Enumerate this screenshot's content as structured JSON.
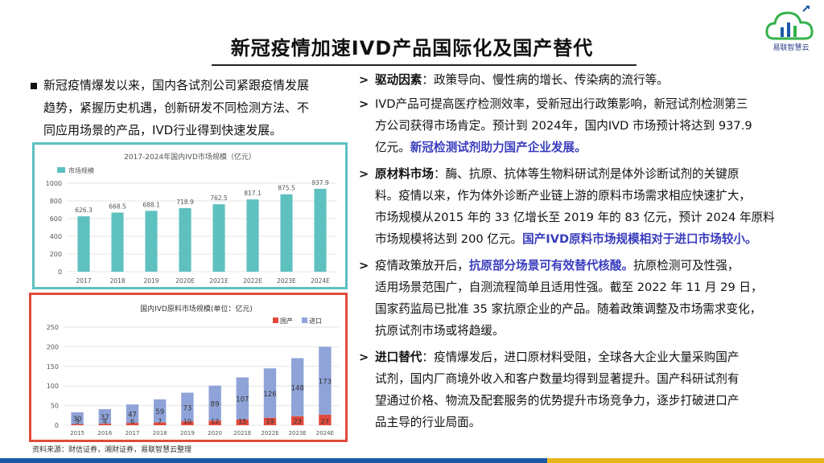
{
  "title": "新冠疫情加速IVD产品国际化及国产替代",
  "logo": {
    "name": "易联智慧云",
    "icon": "cloud-chart-icon"
  },
  "left_paragraph": [
    "新冠疫情爆发以来，国内各试剂公司紧跟疫情发展",
    "趋势，紧握历史机遇，创新研发不同检测方法、不",
    "同应用场景的产品，IVD行业得到快速发展。"
  ],
  "bullets": [
    {
      "head": "驱动因素",
      "lines": [
        {
          "text": "：政策导向、慢性病的增长、传染病的流行等。"
        }
      ]
    },
    {
      "head": "",
      "lines": [
        {
          "text": "IVD产品可提高医疗检测效率，受新冠出行政策影响，新冠试剂检测第三"
        },
        {
          "text": "方公司获得市场肯定。预计到 2024年，国内IVD 市场预计将达到 937.9"
        },
        {
          "text": "亿元。",
          "emph": "新冠检测试剂助力国产企业发展。"
        }
      ]
    },
    {
      "head": "原材料市场",
      "lines": [
        {
          "text": "：酶、抗原、抗体等生物料研试剂是体外诊断试剂的关键原"
        },
        {
          "text": "料。疫情以来，作为体外诊断产业链上游的原料市场需求相应快速扩大，"
        },
        {
          "text": "市场规模从2015 年的 33 亿增长至 2019 年的 83 亿元，预计 2024 年原料"
        },
        {
          "text": "市场规模将达到 200 亿元。",
          "emph": "国产IVD原料市场规模相对于进口市场较小。"
        }
      ]
    },
    {
      "head": "",
      "lines": [
        {
          "text": "疫情政策放开后，",
          "emph": "抗原部分场景可有效替代核酸。",
          "tail": "抗原检测可及性强，"
        },
        {
          "text": "适用场景范围广，自测流程简单且适用性强。截至 2022 年 11 月 29 日，"
        },
        {
          "text": "国家药监局已批准 35 家抗原企业的产品。随着政策调整及市场需求变化，"
        },
        {
          "text": "抗原试剂市场或将趋缓。"
        }
      ]
    },
    {
      "head": "进口替代",
      "lines": [
        {
          "text": "：疫情爆发后，进口原材料受阻，全球各大企业大量采购国产"
        },
        {
          "text": "试剂，国内厂商境外收入和客户数量均得到显著提升。国产科研试剂有"
        },
        {
          "text": "望通过价格、物流及配套服务的优势提升市场竞争力，逐步打破进口产"
        },
        {
          "text": "品主导的行业局面。"
        }
      ]
    }
  ],
  "source": "资料来源：财信证券，湘财证券，易联智慧云整理",
  "colors": {
    "teal": "#5fc0c0",
    "red_frame": "#e24b3b",
    "domestic": "#e04a3c",
    "import": "#8fa3d8",
    "emph_blue": "#3a3dbd"
  },
  "chart_data": [
    {
      "type": "bar",
      "title": "2017-2024年国内IVD市场规模（亿元）",
      "legend": [
        "市场规模"
      ],
      "legend_position": "top-left",
      "categories": [
        "2017",
        "2018",
        "2019",
        "2020E",
        "2021E",
        "2022E",
        "2023E",
        "2024E"
      ],
      "series": [
        {
          "name": "市场规模",
          "values": [
            626.3,
            668.5,
            688.1,
            718.9,
            762.5,
            817.1,
            875.5,
            937.9
          ]
        }
      ],
      "ylim": [
        0,
        1000
      ],
      "yticks": [
        "0",
        "200",
        "400",
        "600",
        "800",
        "1000"
      ],
      "value_labels": [
        "626.3",
        "668.5",
        "688.1",
        "718.9",
        "762.5",
        "817.1",
        "875.5",
        "937.9"
      ],
      "grid": true
    },
    {
      "type": "bar",
      "stacked": true,
      "title": "国内IVD原料市场规模(单位：亿元)",
      "legend": [
        "国产",
        "进口"
      ],
      "legend_position": "top-right",
      "categories": [
        "2015",
        "2016",
        "2017",
        "2018",
        "2019",
        "2020",
        "2021E",
        "2022E",
        "2023E",
        "2024E"
      ],
      "series": [
        {
          "name": "国产",
          "values": [
            3,
            4,
            6,
            7,
            10,
            12,
            15,
            19,
            23,
            27
          ]
        },
        {
          "name": "进口",
          "values": [
            30,
            37,
            47,
            59,
            73,
            89,
            107,
            126,
            148,
            173
          ]
        }
      ],
      "domestic_labels": [
        "3",
        "4",
        "6",
        "7",
        "10",
        "12",
        "15",
        "19",
        "23",
        "27"
      ],
      "import_labels": [
        "30",
        "37",
        "47",
        "59",
        "73",
        "89",
        "107",
        "126",
        "148",
        "173"
      ],
      "ylim": [
        0,
        250
      ],
      "yticks": [
        "0",
        "50",
        "100",
        "150",
        "200",
        "250"
      ],
      "grid": true
    }
  ]
}
